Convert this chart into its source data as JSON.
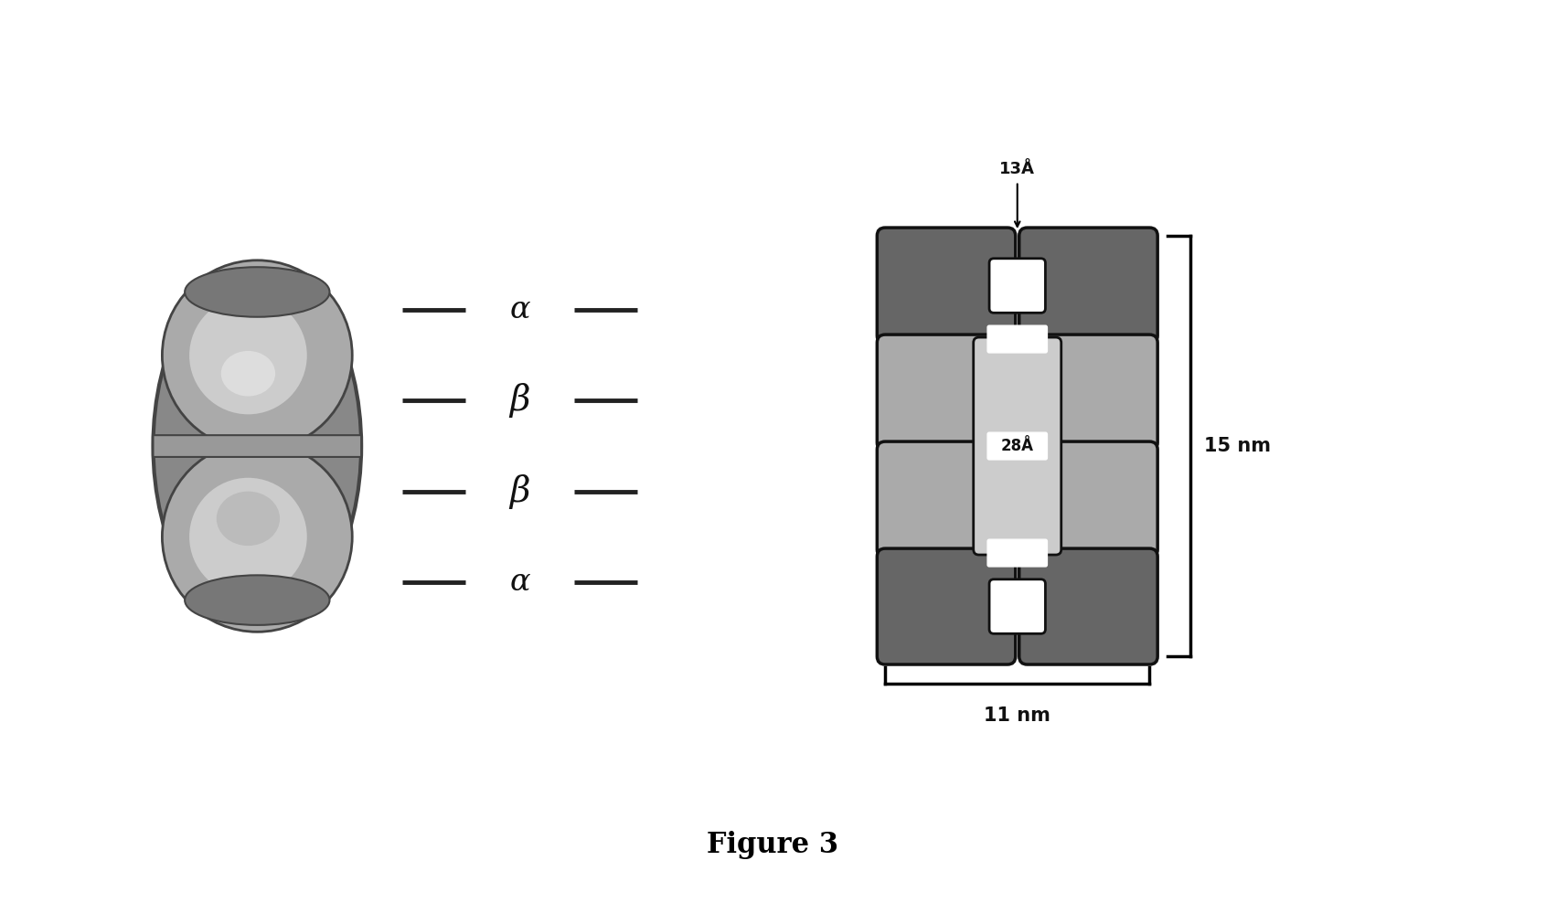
{
  "title": "Figure 3",
  "background_color": "#ffffff",
  "fig_width": 16.91,
  "fig_height": 9.88,
  "labels": [
    "α",
    "β",
    "β",
    "α"
  ],
  "dimension_13A": "13Å",
  "dimension_28A": "28Å",
  "dimension_15nm": "15 nm",
  "dimension_11nm": "11 nm",
  "alpha_color": "#666666",
  "beta_color": "#aaaaaa",
  "channel_color": "#cccccc",
  "edge_color": "#111111"
}
